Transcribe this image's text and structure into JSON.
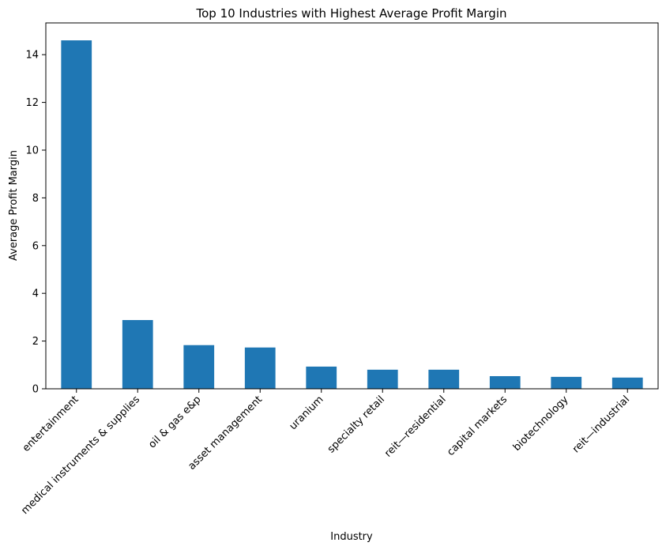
{
  "chart_data": {
    "type": "bar",
    "title": "Top 10 Industries with Highest Average Profit Margin",
    "xlabel": "Industry",
    "ylabel": "Average Profit Margin",
    "categories": [
      "entertainment",
      "medical instruments & supplies",
      "oil & gas e&p",
      "asset management",
      "uranium",
      "specialty retail",
      "reit—residential",
      "capital markets",
      "biotechnology",
      "reit—industrial"
    ],
    "values": [
      14.6,
      2.88,
      1.83,
      1.73,
      0.93,
      0.8,
      0.8,
      0.53,
      0.5,
      0.47
    ],
    "ylim": [
      0,
      15.33
    ],
    "yticks": [
      0,
      2,
      4,
      6,
      8,
      10,
      12,
      14
    ],
    "ytick_labels": [
      "0",
      "2",
      "4",
      "6",
      "8",
      "10",
      "12",
      "14"
    ],
    "bar_color": "#1f77b4",
    "grid": false,
    "legend": "none"
  }
}
